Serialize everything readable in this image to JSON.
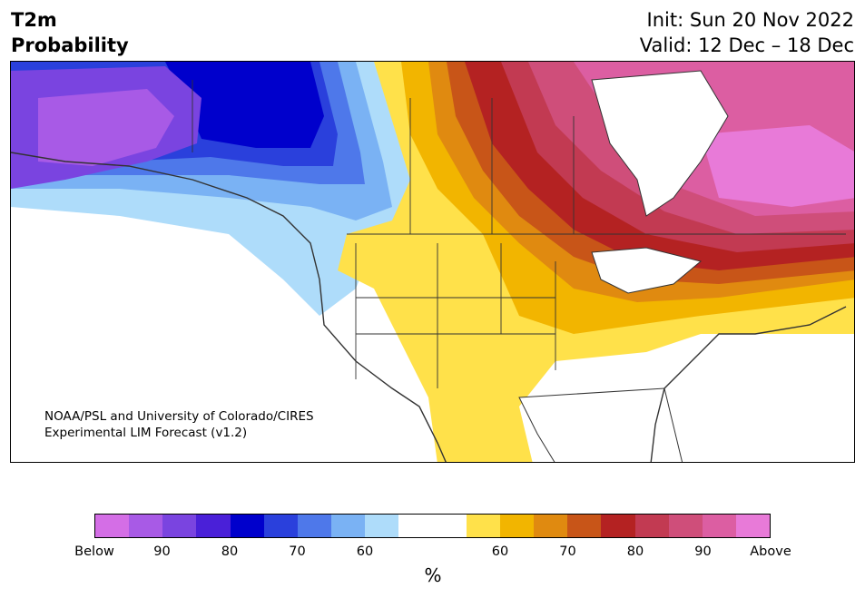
{
  "header": {
    "variable": "T2m",
    "product": "Probability",
    "init": "Init: Sun 20 Nov 2022",
    "valid": "Valid: 12 Dec – 18 Dec"
  },
  "credit": {
    "line1": "NOAA/PSL and University of Colorado/CIRES",
    "line2": "Experimental LIM Forecast (v1.2)"
  },
  "colorbar": {
    "colors": [
      "#d46ee6",
      "#a85ae6",
      "#7a44e0",
      "#4a20d8",
      "#0000cc",
      "#2a40dc",
      "#4e78ea",
      "#7ab2f4",
      "#aedcfa",
      "#ffffff",
      "#ffffff",
      "#ffe14a",
      "#f2b500",
      "#e08a10",
      "#c85518",
      "#b42222",
      "#c23a52",
      "#cf4e7a",
      "#dc5ea2",
      "#e87ad8"
    ],
    "tick_labels": [
      "Below",
      "90",
      "80",
      "70",
      "60",
      "60",
      "70",
      "80",
      "90",
      "Above"
    ],
    "unit": "%"
  },
  "map": {
    "region": "North America",
    "colors": {
      "land": "#ffffff",
      "water": "#ffffff",
      "coast": "#333333",
      "border": "#333333"
    }
  }
}
